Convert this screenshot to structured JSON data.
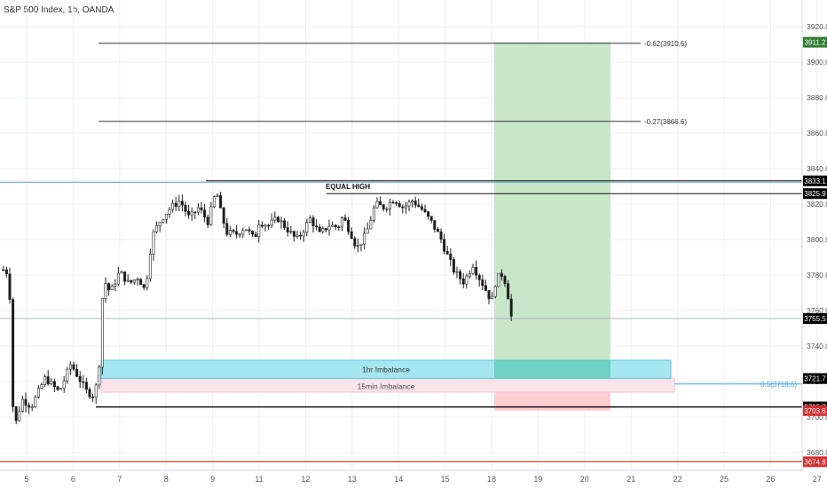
{
  "header": {
    "title": "S&P 500 Index, 1h, OANDA"
  },
  "chart_data": {
    "type": "candlestick",
    "symbol": "S&P 500 Index",
    "timeframe": "1h",
    "source": "OANDA",
    "ylim": [
      3668,
      3932
    ],
    "y_ticks": [
      3680.0,
      3700.0,
      3720.0,
      3740.0,
      3760.0,
      3780.0,
      3800.0,
      3820.0,
      3840.0,
      3860.0,
      3880.0,
      3900.0,
      3920.0
    ],
    "x_day_range": [
      4.5,
      28
    ],
    "x_ticks": [
      5,
      6,
      7,
      8,
      9,
      10,
      11,
      12,
      13,
      14,
      15,
      16,
      17,
      18,
      19,
      20,
      21,
      22,
      23,
      24,
      25,
      26,
      27
    ],
    "x_tick_labels": [
      "5",
      "6",
      "7",
      "8",
      "9",
      "11",
      "12",
      "13",
      "14",
      "15",
      "18",
      "19",
      "20",
      "21",
      "22",
      "25",
      "26",
      "27"
    ],
    "price_path": [
      [
        4.5,
        3783
      ],
      [
        4.6,
        3781
      ],
      [
        4.66,
        3760
      ],
      [
        4.72,
        3690
      ],
      [
        4.78,
        3698
      ],
      [
        4.9,
        3710
      ],
      [
        5.1,
        3706
      ],
      [
        5.4,
        3722
      ],
      [
        5.7,
        3714
      ],
      [
        5.95,
        3730
      ],
      [
        6.1,
        3723
      ],
      [
        6.3,
        3714
      ],
      [
        6.45,
        3712
      ],
      [
        6.55,
        3724
      ],
      [
        6.65,
        3778
      ],
      [
        6.8,
        3770
      ],
      [
        7.0,
        3782
      ],
      [
        7.2,
        3775
      ],
      [
        7.4,
        3779
      ],
      [
        7.55,
        3771
      ],
      [
        7.7,
        3802
      ],
      [
        7.9,
        3812
      ],
      [
        8.1,
        3818
      ],
      [
        8.3,
        3822
      ],
      [
        8.5,
        3812
      ],
      [
        8.7,
        3818
      ],
      [
        8.9,
        3810
      ],
      [
        9.0,
        3820
      ],
      [
        9.08,
        3828
      ],
      [
        9.15,
        3818
      ],
      [
        9.3,
        3804
      ],
      [
        9.5,
        3803
      ],
      [
        9.7,
        3807
      ],
      [
        9.9,
        3800
      ],
      [
        10.0,
        3810
      ],
      [
        10.2,
        3808
      ],
      [
        10.4,
        3812
      ],
      [
        10.6,
        3806
      ],
      [
        10.8,
        3800
      ],
      [
        10.9,
        3803
      ],
      [
        11.1,
        3812
      ],
      [
        11.3,
        3803
      ],
      [
        11.5,
        3808
      ],
      [
        11.7,
        3807
      ],
      [
        11.8,
        3813
      ],
      [
        12.0,
        3802
      ],
      [
        12.1,
        3795
      ],
      [
        12.3,
        3803
      ],
      [
        12.5,
        3820
      ],
      [
        12.7,
        3818
      ],
      [
        12.9,
        3823
      ],
      [
        13.1,
        3818
      ],
      [
        13.3,
        3822
      ],
      [
        13.5,
        3817
      ],
      [
        13.7,
        3810
      ],
      [
        13.9,
        3801
      ],
      [
        14.0,
        3794
      ],
      [
        14.1,
        3788
      ],
      [
        14.2,
        3782
      ],
      [
        14.4,
        3776
      ],
      [
        14.6,
        3786
      ],
      [
        14.7,
        3780
      ],
      [
        14.85,
        3773
      ],
      [
        15.0,
        3765
      ],
      [
        15.1,
        3778
      ],
      [
        15.25,
        3781
      ],
      [
        15.35,
        3769
      ],
      [
        15.43,
        3755.5
      ]
    ],
    "levels": [
      {
        "label": "-0.62(3910.6)",
        "price": 3910.6
      },
      {
        "label": "-0.27(3866.6)",
        "price": 3866.6
      },
      {
        "label": "0.5(3718.6)",
        "price": 3718.6
      }
    ],
    "horizontal_lines": [
      3833.1,
      3825.9,
      3755.5,
      3705.7,
      3674.8
    ],
    "annotations": [
      "EQUAL HIGH",
      "1hr Imbalance",
      "15min Imbalance"
    ],
    "zones": [
      {
        "name": "1hr Imbalance",
        "from": 3732,
        "to": 3721.7
      },
      {
        "name": "15min Imbalance",
        "from": 3722,
        "to": 3714
      },
      {
        "name": "target (green)",
        "from": 3911.2,
        "to": 3721.7
      },
      {
        "name": "stop (red)",
        "from": 3721.7,
        "to": 3703.6
      }
    ],
    "price_labels": [
      {
        "value": "3911.2",
        "price": 3911.2,
        "bg": "#2e7d32",
        "fg": "#ffffff"
      },
      {
        "value": "3833.1",
        "price": 3833.1,
        "bg": "#000000",
        "fg": "#ffffff"
      },
      {
        "value": "3825.9",
        "price": 3825.9,
        "bg": "#000000",
        "fg": "#ffffff"
      },
      {
        "value": "3755.5",
        "price": 3755.5,
        "bg": "#000000",
        "fg": "#ffffff"
      },
      {
        "value": "3721.7",
        "price": 3721.7,
        "bg": "#000000",
        "fg": "#ffffff"
      },
      {
        "value": "3705.7",
        "price": 3705.7,
        "bg": "#000000",
        "fg": "#ffffff"
      },
      {
        "value": "3703.6",
        "price": 3703.6,
        "bg": "#d32f2f",
        "fg": "#ffffff"
      },
      {
        "value": "3674.8",
        "price": 3674.8,
        "bg": "#d32f2f",
        "fg": "#ffffff"
      }
    ],
    "colors": {
      "grid": "#eef0f3",
      "candle": "#1e1e1e",
      "teal_line": "#4a9fb0",
      "red_line": "#e53935",
      "green_zone": "#c8e6c9",
      "red_zone": "#ffcdd2",
      "cyan_zone": "#9be3f0",
      "pink_zone": "#fbe3ea",
      "fib_blue": "#42a5f5"
    }
  }
}
